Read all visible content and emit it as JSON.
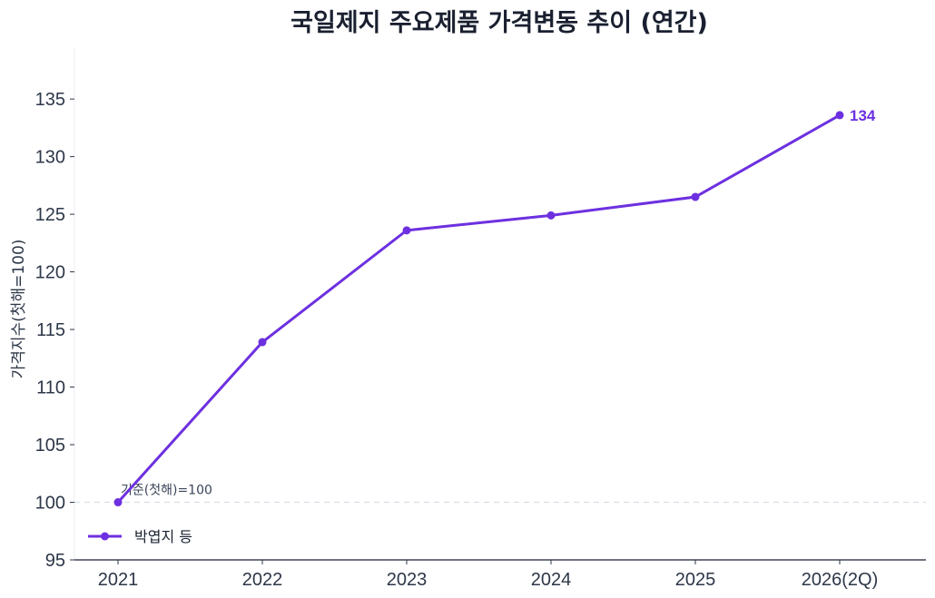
{
  "chart_data": {
    "type": "line",
    "title": "국일제지 주요제품 가격변동 추이 (연간)",
    "ylabel": "가격지수(첫해=100)",
    "xlabel": "",
    "categories": [
      "2021",
      "2022",
      "2023",
      "2024",
      "2025",
      "2026(2Q)"
    ],
    "series": [
      {
        "name": "박엽지 등",
        "color": "#6d30e0",
        "values": [
          100,
          113.9,
          123.6,
          124.9,
          126.5,
          133.6
        ]
      }
    ],
    "ylim": [
      95,
      139.5
    ],
    "yticks": [
      95,
      100,
      105,
      110,
      115,
      120,
      125,
      130,
      135
    ],
    "reference_line": {
      "value": 100,
      "label": "기준(첫해)=100"
    },
    "end_label": "134",
    "legend_position": "bottom-left",
    "grid": false
  }
}
